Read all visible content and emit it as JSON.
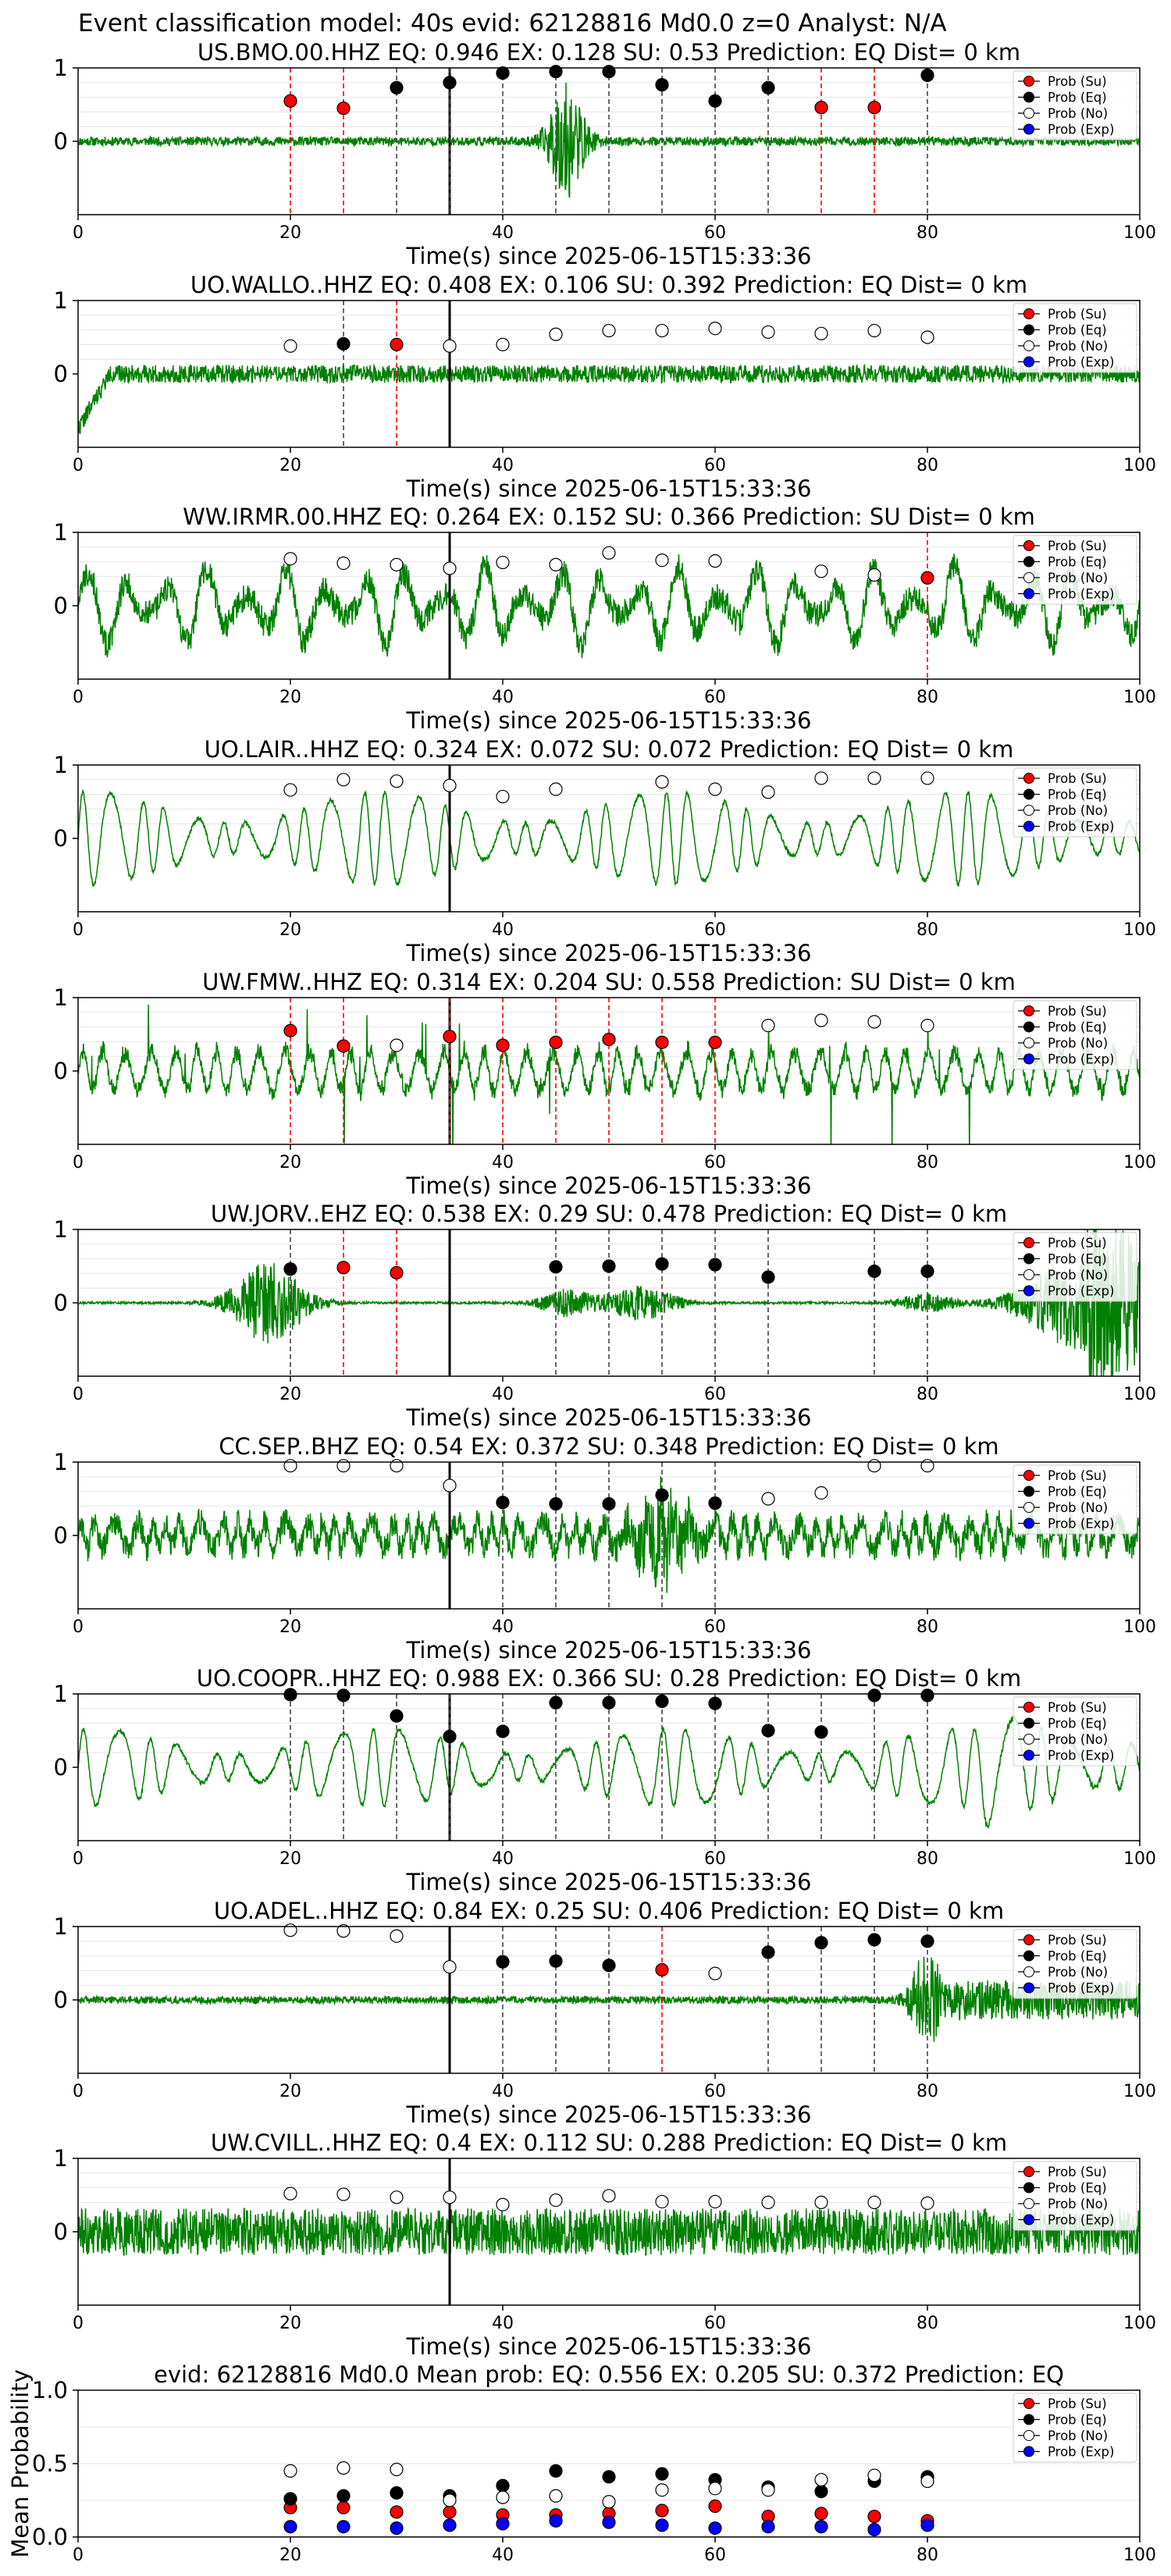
{
  "suptitle": "Event classification model: 40s evid: 62128816 Md0.0 z=0 Analyst: N/A",
  "colors": {
    "waveform": "#008000",
    "su": "#ff0000",
    "eq": "#000000",
    "no": "#ffffff",
    "exp": "#0000ff",
    "origin_line": "#000000"
  },
  "legend_entries": [
    "Prob (Su)",
    "Prob (Eq)",
    "Prob (No)",
    "Prob (Exp)"
  ],
  "chart_data": [
    {
      "type": "line",
      "title": "US.BMO.00.HHZ   EQ: 0.946  EX: 0.128  SU: 0.53   Prediction: EQ",
      "dist": "Dist= 0 km",
      "xlabel": "Time(s) since 2025-06-15T15:33:36",
      "xlim": [
        0,
        100
      ],
      "ylim": [
        -1,
        1
      ],
      "xticks": [
        0,
        20,
        40,
        60,
        80,
        100
      ],
      "yticks": [
        0,
        1
      ],
      "origin_time": 35,
      "waveform": {
        "style": "bmo",
        "amplitude": 0.06,
        "burst_center": 46,
        "burst_amp": 0.75,
        "seed": 11
      },
      "points": [
        {
          "t": 20,
          "cls": "su",
          "p": 0.55
        },
        {
          "t": 25,
          "cls": "su",
          "p": 0.45
        },
        {
          "t": 30,
          "cls": "eq",
          "p": 0.73
        },
        {
          "t": 35,
          "cls": "eq",
          "p": 0.8
        },
        {
          "t": 40,
          "cls": "eq",
          "p": 0.93
        },
        {
          "t": 45,
          "cls": "eq",
          "p": 0.95
        },
        {
          "t": 50,
          "cls": "eq",
          "p": 0.95
        },
        {
          "t": 55,
          "cls": "eq",
          "p": 0.77
        },
        {
          "t": 60,
          "cls": "eq",
          "p": 0.55
        },
        {
          "t": 65,
          "cls": "eq",
          "p": 0.73
        },
        {
          "t": 70,
          "cls": "su",
          "p": 0.46
        },
        {
          "t": 75,
          "cls": "su",
          "p": 0.46
        },
        {
          "t": 80,
          "cls": "eq",
          "p": 0.9
        }
      ]
    },
    {
      "type": "line",
      "title": "UO.WALLO..HHZ   EQ: 0.408  EX: 0.106  SU: 0.392   Prediction: EQ",
      "dist": "Dist= 0 km",
      "xlabel": "Time(s) since 2025-06-15T15:33:36",
      "xlim": [
        0,
        100
      ],
      "ylim": [
        -1,
        1
      ],
      "xticks": [
        0,
        20,
        40,
        60,
        80,
        100
      ],
      "yticks": [
        0,
        1
      ],
      "origin_time": 35,
      "waveform": {
        "style": "noise",
        "amplitude": 0.12,
        "seed": 22
      },
      "points": [
        {
          "t": 20,
          "cls": "no",
          "p": 0.38
        },
        {
          "t": 25,
          "cls": "eq",
          "p": 0.41
        },
        {
          "t": 30,
          "cls": "su",
          "p": 0.4
        },
        {
          "t": 35,
          "cls": "no",
          "p": 0.38
        },
        {
          "t": 40,
          "cls": "no",
          "p": 0.4
        },
        {
          "t": 45,
          "cls": "no",
          "p": 0.54
        },
        {
          "t": 50,
          "cls": "no",
          "p": 0.59
        },
        {
          "t": 55,
          "cls": "no",
          "p": 0.59
        },
        {
          "t": 60,
          "cls": "no",
          "p": 0.62
        },
        {
          "t": 65,
          "cls": "no",
          "p": 0.57
        },
        {
          "t": 70,
          "cls": "no",
          "p": 0.55
        },
        {
          "t": 75,
          "cls": "no",
          "p": 0.59
        },
        {
          "t": 80,
          "cls": "no",
          "p": 0.5
        }
      ]
    },
    {
      "type": "line",
      "title": "WW.IRMR.00.HHZ   EQ: 0.264  EX: 0.152  SU: 0.366   Prediction: SU",
      "dist": "Dist= 0 km",
      "xlabel": "Time(s) since 2025-06-15T15:33:36",
      "xlim": [
        0,
        100
      ],
      "ylim": [
        -1,
        1
      ],
      "xticks": [
        0,
        20,
        40,
        60,
        80,
        100
      ],
      "yticks": [
        0,
        1
      ],
      "origin_time": 35,
      "waveform": {
        "style": "rough",
        "amplitude": 0.55,
        "seed": 33
      },
      "points": [
        {
          "t": 20,
          "cls": "no",
          "p": 0.64
        },
        {
          "t": 25,
          "cls": "no",
          "p": 0.58
        },
        {
          "t": 30,
          "cls": "no",
          "p": 0.56
        },
        {
          "t": 35,
          "cls": "no",
          "p": 0.51
        },
        {
          "t": 40,
          "cls": "no",
          "p": 0.59
        },
        {
          "t": 45,
          "cls": "no",
          "p": 0.56
        },
        {
          "t": 50,
          "cls": "no",
          "p": 0.72
        },
        {
          "t": 55,
          "cls": "no",
          "p": 0.62
        },
        {
          "t": 60,
          "cls": "no",
          "p": 0.61
        },
        {
          "t": 70,
          "cls": "no",
          "p": 0.47
        },
        {
          "t": 75,
          "cls": "no",
          "p": 0.42
        },
        {
          "t": 80,
          "cls": "su",
          "p": 0.38
        }
      ]
    },
    {
      "type": "line",
      "title": "UO.LAIR..HHZ   EQ: 0.324  EX: 0.072  SU: 0.072   Prediction: EQ",
      "dist": "Dist= 0 km",
      "xlabel": "Time(s) since 2025-06-15T15:33:36",
      "xlim": [
        0,
        100
      ],
      "ylim": [
        -1,
        1
      ],
      "xticks": [
        0,
        20,
        40,
        60,
        80,
        100
      ],
      "yticks": [
        0,
        1
      ],
      "origin_time": 35,
      "waveform": {
        "style": "smooth",
        "amplitude": 0.6,
        "period": 2.6,
        "seed": 44
      },
      "points": [
        {
          "t": 20,
          "cls": "no",
          "p": 0.66
        },
        {
          "t": 25,
          "cls": "no",
          "p": 0.8
        },
        {
          "t": 30,
          "cls": "no",
          "p": 0.78
        },
        {
          "t": 35,
          "cls": "no",
          "p": 0.72
        },
        {
          "t": 40,
          "cls": "no",
          "p": 0.57
        },
        {
          "t": 45,
          "cls": "no",
          "p": 0.67
        },
        {
          "t": 55,
          "cls": "no",
          "p": 0.77
        },
        {
          "t": 60,
          "cls": "no",
          "p": 0.67
        },
        {
          "t": 65,
          "cls": "no",
          "p": 0.63
        },
        {
          "t": 70,
          "cls": "no",
          "p": 0.82
        },
        {
          "t": 75,
          "cls": "no",
          "p": 0.82
        },
        {
          "t": 80,
          "cls": "no",
          "p": 0.82
        }
      ]
    },
    {
      "type": "line",
      "title": "UW.FMW..HHZ   EQ: 0.314  EX: 0.204  SU: 0.558   Prediction: SU",
      "dist": "Dist= 0 km",
      "xlabel": "Time(s) since 2025-06-15T15:33:36",
      "xlim": [
        0,
        100
      ],
      "ylim": [
        -1,
        1
      ],
      "xticks": [
        0,
        20,
        40,
        60,
        80,
        100
      ],
      "yticks": [
        0,
        1
      ],
      "origin_time": 35,
      "waveform": {
        "style": "spiky",
        "amplitude": 0.35,
        "seed": 55
      },
      "points": [
        {
          "t": 20,
          "cls": "su",
          "p": 0.55
        },
        {
          "t": 25,
          "cls": "su",
          "p": 0.34
        },
        {
          "t": 30,
          "cls": "no",
          "p": 0.35
        },
        {
          "t": 35,
          "cls": "su",
          "p": 0.47
        },
        {
          "t": 40,
          "cls": "su",
          "p": 0.35
        },
        {
          "t": 45,
          "cls": "su",
          "p": 0.39
        },
        {
          "t": 50,
          "cls": "su",
          "p": 0.43
        },
        {
          "t": 55,
          "cls": "su",
          "p": 0.39
        },
        {
          "t": 60,
          "cls": "su",
          "p": 0.39
        },
        {
          "t": 65,
          "cls": "no",
          "p": 0.62
        },
        {
          "t": 70,
          "cls": "no",
          "p": 0.69
        },
        {
          "t": 75,
          "cls": "no",
          "p": 0.67
        },
        {
          "t": 80,
          "cls": "no",
          "p": 0.62
        }
      ]
    },
    {
      "type": "line",
      "title": "UW.JORV..EHZ   EQ: 0.538  EX: 0.29  SU: 0.478   Prediction: EQ",
      "dist": "Dist= 0 km",
      "xlabel": "Time(s) since 2025-06-15T15:33:36",
      "xlim": [
        0,
        100
      ],
      "ylim": [
        -1,
        1
      ],
      "xticks": [
        0,
        20,
        40,
        60,
        80,
        100
      ],
      "yticks": [
        0,
        1
      ],
      "origin_time": 35,
      "waveform": {
        "style": "jorv",
        "amplitude": 0.015,
        "seed": 66
      },
      "points": [
        {
          "t": 20,
          "cls": "eq",
          "p": 0.46
        },
        {
          "t": 25,
          "cls": "su",
          "p": 0.48
        },
        {
          "t": 30,
          "cls": "su",
          "p": 0.41
        },
        {
          "t": 45,
          "cls": "eq",
          "p": 0.49
        },
        {
          "t": 50,
          "cls": "eq",
          "p": 0.5
        },
        {
          "t": 55,
          "cls": "eq",
          "p": 0.53
        },
        {
          "t": 60,
          "cls": "eq",
          "p": 0.52
        },
        {
          "t": 65,
          "cls": "eq",
          "p": 0.35
        },
        {
          "t": 75,
          "cls": "eq",
          "p": 0.43
        },
        {
          "t": 80,
          "cls": "eq",
          "p": 0.43
        }
      ]
    },
    {
      "type": "line",
      "title": "CC.SEP..BHZ   EQ: 0.54  EX: 0.372  SU: 0.348   Prediction: EQ",
      "dist": "Dist= 0 km",
      "xlabel": "Time(s) since 2025-06-15T15:33:36",
      "xlim": [
        0,
        100
      ],
      "ylim": [
        -1,
        1
      ],
      "xticks": [
        0,
        20,
        40,
        60,
        80,
        100
      ],
      "yticks": [
        0,
        1
      ],
      "origin_time": 35,
      "waveform": {
        "style": "sep",
        "amplitude": 0.3,
        "seed": 77
      },
      "points": [
        {
          "t": 20,
          "cls": "no",
          "p": 0.95
        },
        {
          "t": 25,
          "cls": "no",
          "p": 0.95
        },
        {
          "t": 30,
          "cls": "no",
          "p": 0.95
        },
        {
          "t": 35,
          "cls": "no",
          "p": 0.68
        },
        {
          "t": 40,
          "cls": "eq",
          "p": 0.45
        },
        {
          "t": 45,
          "cls": "eq",
          "p": 0.43
        },
        {
          "t": 50,
          "cls": "eq",
          "p": 0.43
        },
        {
          "t": 55,
          "cls": "eq",
          "p": 0.55
        },
        {
          "t": 60,
          "cls": "eq",
          "p": 0.44
        },
        {
          "t": 65,
          "cls": "no",
          "p": 0.5
        },
        {
          "t": 70,
          "cls": "no",
          "p": 0.58
        },
        {
          "t": 75,
          "cls": "no",
          "p": 0.95
        },
        {
          "t": 80,
          "cls": "no",
          "p": 0.95
        }
      ]
    },
    {
      "type": "line",
      "title": "UO.COOPR..HHZ   EQ: 0.988  EX: 0.366  SU: 0.28   Prediction: EQ",
      "dist": "Dist= 0 km",
      "xlabel": "Time(s) since 2025-06-15T15:33:36",
      "xlim": [
        0,
        100
      ],
      "ylim": [
        -1,
        1
      ],
      "xticks": [
        0,
        20,
        40,
        60,
        80,
        100
      ],
      "yticks": [
        0,
        1
      ],
      "origin_time": 35,
      "waveform": {
        "style": "smooth",
        "amplitude": 0.5,
        "period": 3.0,
        "seed": 88,
        "late_big": true
      },
      "points": [
        {
          "t": 20,
          "cls": "eq",
          "p": 0.99
        },
        {
          "t": 25,
          "cls": "eq",
          "p": 0.98
        },
        {
          "t": 30,
          "cls": "eq",
          "p": 0.7
        },
        {
          "t": 35,
          "cls": "eq",
          "p": 0.42
        },
        {
          "t": 40,
          "cls": "eq",
          "p": 0.49
        },
        {
          "t": 45,
          "cls": "eq",
          "p": 0.88
        },
        {
          "t": 50,
          "cls": "eq",
          "p": 0.88
        },
        {
          "t": 55,
          "cls": "eq",
          "p": 0.9
        },
        {
          "t": 60,
          "cls": "eq",
          "p": 0.87
        },
        {
          "t": 65,
          "cls": "eq",
          "p": 0.5
        },
        {
          "t": 70,
          "cls": "eq",
          "p": 0.48
        },
        {
          "t": 75,
          "cls": "eq",
          "p": 0.98
        },
        {
          "t": 80,
          "cls": "eq",
          "p": 0.98
        }
      ]
    },
    {
      "type": "line",
      "title": "UO.ADEL..HHZ   EQ: 0.84  EX: 0.25  SU: 0.406   Prediction: EQ",
      "dist": "Dist= 0 km",
      "xlabel": "Time(s) since 2025-06-15T15:33:36",
      "xlim": [
        0,
        100
      ],
      "ylim": [
        -1,
        1
      ],
      "xticks": [
        0,
        20,
        40,
        60,
        80,
        100
      ],
      "yticks": [
        0,
        1
      ],
      "origin_time": 35,
      "waveform": {
        "style": "adel",
        "amplitude": 0.05,
        "seed": 99
      },
      "points": [
        {
          "t": 20,
          "cls": "no",
          "p": 0.95
        },
        {
          "t": 25,
          "cls": "no",
          "p": 0.94
        },
        {
          "t": 30,
          "cls": "no",
          "p": 0.87
        },
        {
          "t": 35,
          "cls": "no",
          "p": 0.45
        },
        {
          "t": 40,
          "cls": "eq",
          "p": 0.52
        },
        {
          "t": 45,
          "cls": "eq",
          "p": 0.53
        },
        {
          "t": 50,
          "cls": "eq",
          "p": 0.47
        },
        {
          "t": 55,
          "cls": "su",
          "p": 0.41
        },
        {
          "t": 60,
          "cls": "no",
          "p": 0.36
        },
        {
          "t": 65,
          "cls": "eq",
          "p": 0.65
        },
        {
          "t": 70,
          "cls": "eq",
          "p": 0.78
        },
        {
          "t": 75,
          "cls": "eq",
          "p": 0.82
        },
        {
          "t": 80,
          "cls": "eq",
          "p": 0.8
        }
      ]
    },
    {
      "type": "line",
      "title": "UW.CVILL..HHZ   EQ: 0.4  EX: 0.112  SU: 0.288   Prediction: EQ",
      "dist": "Dist= 0 km",
      "xlabel": "Time(s) since 2025-06-15T15:33:36",
      "xlim": [
        0,
        100
      ],
      "ylim": [
        -1,
        1
      ],
      "xticks": [
        0,
        20,
        40,
        60,
        80,
        100
      ],
      "yticks": [
        0,
        1
      ],
      "origin_time": 35,
      "waveform": {
        "style": "noise",
        "amplitude": 0.32,
        "seed": 111
      },
      "points": [
        {
          "t": 20,
          "cls": "no",
          "p": 0.52
        },
        {
          "t": 25,
          "cls": "no",
          "p": 0.51
        },
        {
          "t": 30,
          "cls": "no",
          "p": 0.47
        },
        {
          "t": 35,
          "cls": "no",
          "p": 0.47
        },
        {
          "t": 40,
          "cls": "no",
          "p": 0.37
        },
        {
          "t": 45,
          "cls": "no",
          "p": 0.43
        },
        {
          "t": 50,
          "cls": "no",
          "p": 0.49
        },
        {
          "t": 55,
          "cls": "no",
          "p": 0.41
        },
        {
          "t": 60,
          "cls": "no",
          "p": 0.41
        },
        {
          "t": 65,
          "cls": "no",
          "p": 0.4
        },
        {
          "t": 70,
          "cls": "no",
          "p": 0.4
        },
        {
          "t": 75,
          "cls": "no",
          "p": 0.4
        },
        {
          "t": 80,
          "cls": "no",
          "p": 0.39
        }
      ]
    },
    {
      "type": "scatter",
      "title": "evid: 62128816  Md0.0   Mean prob:   EQ: 0.556  EX: 0.205  SU: 0.372   Prediction: EQ",
      "xlabel": "",
      "ylabel": "Mean Probability",
      "xlim": [
        0,
        100
      ],
      "ylim": [
        0,
        1
      ],
      "xticks": [
        0,
        20,
        40,
        60,
        80,
        100
      ],
      "yticks": [
        0.0,
        0.5,
        1.0
      ],
      "ytick_labels": [
        "0.0",
        "0.5",
        "1.0"
      ],
      "x": [
        20,
        25,
        30,
        35,
        40,
        45,
        50,
        55,
        60,
        65,
        70,
        75,
        80
      ],
      "series": [
        {
          "name": "Prob (Su)",
          "cls": "su",
          "values": [
            0.2,
            0.2,
            0.17,
            0.17,
            0.15,
            0.15,
            0.16,
            0.18,
            0.21,
            0.14,
            0.16,
            0.14,
            0.11
          ]
        },
        {
          "name": "Prob (Eq)",
          "cls": "eq",
          "values": [
            0.26,
            0.28,
            0.3,
            0.28,
            0.35,
            0.45,
            0.41,
            0.43,
            0.39,
            0.34,
            0.31,
            0.38,
            0.41
          ]
        },
        {
          "name": "Prob (No)",
          "cls": "no",
          "values": [
            0.45,
            0.47,
            0.46,
            0.25,
            0.27,
            0.28,
            0.24,
            0.32,
            0.33,
            0.32,
            0.39,
            0.42,
            0.38
          ]
        },
        {
          "name": "Prob (Exp)",
          "cls": "exp",
          "values": [
            0.07,
            0.07,
            0.06,
            0.08,
            0.09,
            0.11,
            0.1,
            0.08,
            0.06,
            0.07,
            0.07,
            0.05,
            0.08
          ]
        }
      ]
    }
  ]
}
